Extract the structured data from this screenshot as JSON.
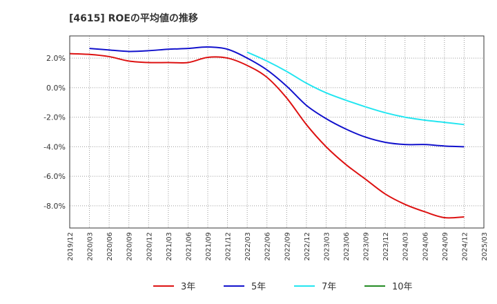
{
  "chart_data": {
    "type": "line",
    "title": "[4615]  ROEの平均値の推移",
    "xlabel": "",
    "ylabel": "",
    "ylim": [
      -9.5,
      3.5
    ],
    "y_ticks": [
      2,
      0,
      -2,
      -4,
      -6,
      -8
    ],
    "y_tick_labels": [
      "2.0%",
      "0.0%",
      "-2.0%",
      "-4.0%",
      "-6.0%",
      "-8.0%"
    ],
    "x_ticks": [
      "2019/12",
      "2020/03",
      "2020/06",
      "2020/09",
      "2020/12",
      "2021/03",
      "2021/06",
      "2021/09",
      "2021/12",
      "2022/03",
      "2022/06",
      "2022/09",
      "2022/12",
      "2023/03",
      "2023/06",
      "2023/09",
      "2023/12",
      "2024/03",
      "2024/06",
      "2024/09",
      "2024/12",
      "2025/03"
    ],
    "grid": true,
    "legend_position": "bottom",
    "series": [
      {
        "name": "3年",
        "color": "#dd1111",
        "points": [
          [
            "2019/12",
            2.3
          ],
          [
            "2020/03",
            2.25
          ],
          [
            "2020/06",
            2.1
          ],
          [
            "2020/09",
            1.8
          ],
          [
            "2020/12",
            1.7
          ],
          [
            "2021/03",
            1.7
          ],
          [
            "2021/06",
            1.7
          ],
          [
            "2021/09",
            2.05
          ],
          [
            "2021/12",
            2.0
          ],
          [
            "2022/03",
            1.5
          ],
          [
            "2022/06",
            0.7
          ],
          [
            "2022/09",
            -0.7
          ],
          [
            "2022/12",
            -2.5
          ],
          [
            "2023/03",
            -4.0
          ],
          [
            "2023/06",
            -5.2
          ],
          [
            "2023/09",
            -6.2
          ],
          [
            "2023/12",
            -7.2
          ],
          [
            "2024/03",
            -7.9
          ],
          [
            "2024/06",
            -8.4
          ],
          [
            "2024/09",
            -8.8
          ],
          [
            "2024/12",
            -8.75
          ]
        ]
      },
      {
        "name": "5年",
        "color": "#1111cc",
        "points": [
          [
            "2020/03",
            2.65
          ],
          [
            "2020/06",
            2.55
          ],
          [
            "2020/09",
            2.45
          ],
          [
            "2020/12",
            2.5
          ],
          [
            "2021/03",
            2.6
          ],
          [
            "2021/06",
            2.65
          ],
          [
            "2021/09",
            2.75
          ],
          [
            "2021/12",
            2.6
          ],
          [
            "2022/03",
            2.0
          ],
          [
            "2022/06",
            1.2
          ],
          [
            "2022/09",
            0.1
          ],
          [
            "2022/12",
            -1.2
          ],
          [
            "2023/03",
            -2.1
          ],
          [
            "2023/06",
            -2.8
          ],
          [
            "2023/09",
            -3.35
          ],
          [
            "2023/12",
            -3.7
          ],
          [
            "2024/03",
            -3.85
          ],
          [
            "2024/06",
            -3.85
          ],
          [
            "2024/09",
            -3.95
          ],
          [
            "2024/12",
            -4.0
          ]
        ]
      },
      {
        "name": "7年",
        "color": "#22e5f0",
        "points": [
          [
            "2022/03",
            2.4
          ],
          [
            "2022/06",
            1.8
          ],
          [
            "2022/09",
            1.1
          ],
          [
            "2022/12",
            0.3
          ],
          [
            "2023/03",
            -0.35
          ],
          [
            "2023/06",
            -0.85
          ],
          [
            "2023/09",
            -1.3
          ],
          [
            "2023/12",
            -1.7
          ],
          [
            "2024/03",
            -2.0
          ],
          [
            "2024/06",
            -2.2
          ],
          [
            "2024/09",
            -2.35
          ],
          [
            "2024/12",
            -2.5
          ]
        ]
      },
      {
        "name": "10年",
        "color": "#228b22",
        "points": []
      }
    ]
  }
}
